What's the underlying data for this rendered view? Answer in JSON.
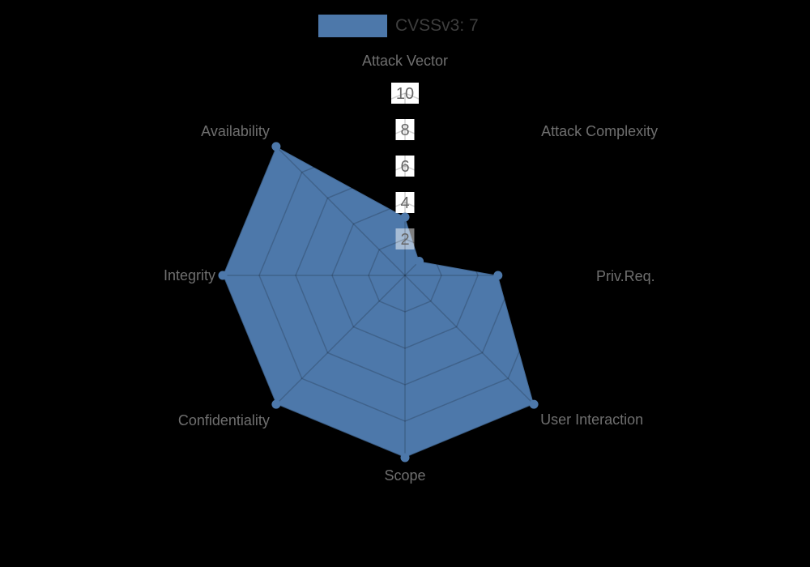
{
  "background_color": "#000000",
  "legend": {
    "label": "CVSSv3: 7",
    "swatch_color": "#4d78aa",
    "text_color": "#3e3e3e"
  },
  "chart_data": {
    "type": "radar",
    "title": "",
    "categories": [
      "Attack Vector",
      "Attack Complexity",
      "Priv.Req.",
      "User Interaction",
      "Scope",
      "Confidentiality",
      "Integrity",
      "Availability"
    ],
    "series": [
      {
        "name": "CVSSv3: 7",
        "color": "#4d78aa",
        "values": [
          3.2,
          1.1,
          5.1,
          10,
          10,
          10,
          10,
          10
        ]
      }
    ],
    "r_axis": {
      "min": 0,
      "max": 10,
      "ticks": [
        2,
        4,
        6,
        8,
        10
      ],
      "tick_label_color": "#666666",
      "tick_box_color": "#ffffff"
    },
    "grid": {
      "shape": "polygon",
      "rings": 5,
      "spokes": 8,
      "on": true
    },
    "axis_label_color": "#6f6f6f",
    "legend_position": "top-center"
  }
}
